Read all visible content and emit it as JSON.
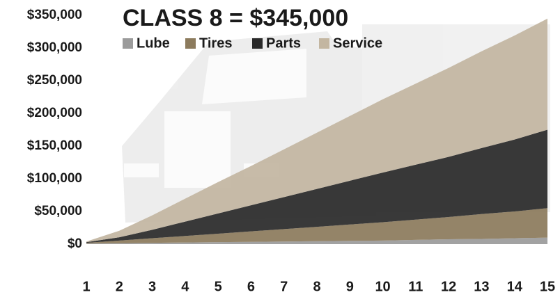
{
  "chart_data": {
    "type": "stacked_area",
    "title": "CLASS 8 = $345,000",
    "x": [
      1,
      2,
      3,
      4,
      5,
      6,
      7,
      8,
      9,
      10,
      11,
      12,
      13,
      14,
      15
    ],
    "xlim": [
      1,
      15
    ],
    "series": [
      {
        "name": "Lube",
        "color": "#9b9b9b",
        "values": [
          1000,
          1500,
          2000,
          2500,
          3000,
          3500,
          4000,
          4500,
          5000,
          5500,
          6500,
          7500,
          8000,
          9000,
          10000
        ]
      },
      {
        "name": "Tires",
        "color": "#8c7b5d",
        "values": [
          1000,
          4000,
          7000,
          10000,
          13000,
          16000,
          19000,
          22000,
          25000,
          28000,
          31000,
          34000,
          38000,
          41000,
          45000
        ]
      },
      {
        "name": "Parts",
        "color": "#2a2a2a",
        "values": [
          1000,
          5000,
          13000,
          22000,
          31000,
          40000,
          49000,
          58000,
          67000,
          76000,
          84000,
          92000,
          101000,
          110000,
          120000
        ]
      },
      {
        "name": "Service",
        "color": "#c3b6a1",
        "values": [
          1000,
          10000,
          22000,
          35000,
          48000,
          60000,
          73000,
          86000,
          99000,
          112000,
          124000,
          136000,
          148000,
          159000,
          170000
        ]
      }
    ],
    "ylim": [
      0,
      350000
    ],
    "yticks": [
      {
        "value": 0,
        "label": "$0"
      },
      {
        "value": 50000,
        "label": "$50,000"
      },
      {
        "value": 100000,
        "label": "$100,000"
      },
      {
        "value": 150000,
        "label": "$150,000"
      },
      {
        "value": 200000,
        "label": "$200,000"
      },
      {
        "value": 250000,
        "label": "$250,000"
      },
      {
        "value": 300000,
        "label": "$300,000"
      },
      {
        "value": 350000,
        "label": "$350,000"
      }
    ],
    "legend": "top"
  }
}
